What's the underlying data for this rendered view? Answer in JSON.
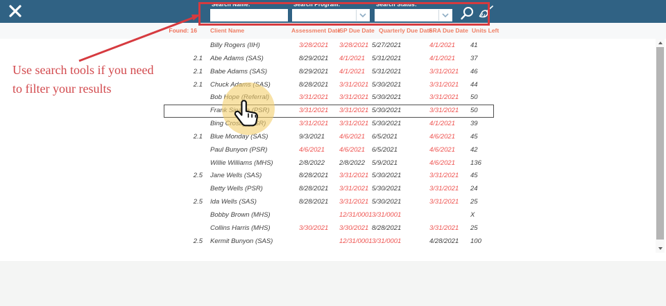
{
  "topbar": {
    "search_name_label": "Search Name:",
    "search_program_label": "Search Program:",
    "search_status_label": "Search Status:",
    "search_name_value": "",
    "search_program_value": "",
    "search_status_value": "",
    "colors": {
      "bar": "#306284",
      "annotation_red": "#d63a3f"
    }
  },
  "icons": {
    "close": "x-cross",
    "search": "magnifier",
    "clear_filters": "broom",
    "dropdown": "chevron-down",
    "scroll_up": "triangle-up",
    "scroll_down": "triangle-down"
  },
  "annotation": {
    "text": "Use search tools if you need to filter your results",
    "color": "#d2494d"
  },
  "table": {
    "found_label": "Found: 16",
    "header_color": "#ef7d63",
    "overdue_color": "#ee5350",
    "columns": [
      "Client Name",
      "Assessment Date",
      "ISP Due Date",
      "Quarterly Due Date",
      "SRA Due Date",
      "Units Left"
    ],
    "rows": [
      {
        "level": "",
        "name": "Billy Rogers (IIH)",
        "assessment": "3/28/2021",
        "assessment_overdue": true,
        "isp": "3/28/2021",
        "isp_overdue": true,
        "quarterly": "5/27/2021",
        "quarterly_overdue": false,
        "sra": "4/1/2021",
        "sra_overdue": true,
        "units": "41",
        "selected": false
      },
      {
        "level": "2.1",
        "name": "Abe Adams (SAS)",
        "assessment": "8/29/2021",
        "assessment_overdue": false,
        "isp": "4/1/2021",
        "isp_overdue": true,
        "quarterly": "5/31/2021",
        "quarterly_overdue": false,
        "sra": "4/1/2021",
        "sra_overdue": true,
        "units": "37",
        "selected": false
      },
      {
        "level": "2.1",
        "name": "Babe Adams (SAS)",
        "assessment": "8/29/2021",
        "assessment_overdue": false,
        "isp": "4/1/2021",
        "isp_overdue": true,
        "quarterly": "5/31/2021",
        "quarterly_overdue": false,
        "sra": "3/31/2021",
        "sra_overdue": true,
        "units": "46",
        "selected": false
      },
      {
        "level": "2.1",
        "name": "Chuck Adams (SAS)",
        "assessment": "8/28/2021",
        "assessment_overdue": false,
        "isp": "3/31/2021",
        "isp_overdue": true,
        "quarterly": "5/30/2021",
        "quarterly_overdue": false,
        "sra": "3/31/2021",
        "sra_overdue": true,
        "units": "44",
        "selected": false
      },
      {
        "level": "",
        "name": "Bob Hope (Referral)",
        "assessment": "3/31/2021",
        "assessment_overdue": true,
        "isp": "3/31/2021",
        "isp_overdue": true,
        "quarterly": "5/30/2021",
        "quarterly_overdue": false,
        "sra": "3/31/2021",
        "sra_overdue": true,
        "units": "50",
        "selected": false
      },
      {
        "level": "",
        "name": "Frank Sinatra (PSR)",
        "assessment": "3/31/2021",
        "assessment_overdue": true,
        "isp": "3/31/2021",
        "isp_overdue": true,
        "quarterly": "5/30/2021",
        "quarterly_overdue": false,
        "sra": "3/31/2021",
        "sra_overdue": true,
        "units": "50",
        "selected": true
      },
      {
        "level": "",
        "name": "Bing Crosby (PSR)",
        "assessment": "3/31/2021",
        "assessment_overdue": true,
        "isp": "3/31/2021",
        "isp_overdue": true,
        "quarterly": "5/30/2021",
        "quarterly_overdue": false,
        "sra": "4/1/2021",
        "sra_overdue": true,
        "units": "39",
        "selected": false
      },
      {
        "level": "2.1",
        "name": "Blue  Monday (SAS)",
        "assessment": "9/3/2021",
        "assessment_overdue": false,
        "isp": "4/6/2021",
        "isp_overdue": true,
        "quarterly": "6/5/2021",
        "quarterly_overdue": false,
        "sra": "4/6/2021",
        "sra_overdue": true,
        "units": "45",
        "selected": false
      },
      {
        "level": "",
        "name": "Paul Bunyon (PSR)",
        "assessment": "4/6/2021",
        "assessment_overdue": true,
        "isp": "4/6/2021",
        "isp_overdue": true,
        "quarterly": "6/5/2021",
        "quarterly_overdue": false,
        "sra": "4/6/2021",
        "sra_overdue": true,
        "units": "42",
        "selected": false
      },
      {
        "level": "",
        "name": "Willie Williams (MHS)",
        "assessment": "2/8/2022",
        "assessment_overdue": false,
        "isp": "2/8/2022",
        "isp_overdue": false,
        "quarterly": "5/9/2021",
        "quarterly_overdue": false,
        "sra": "4/6/2021",
        "sra_overdue": true,
        "units": "136",
        "selected": false
      },
      {
        "level": "2.5",
        "name": "Jane Wells (SAS)",
        "assessment": "8/28/2021",
        "assessment_overdue": false,
        "isp": "3/31/2021",
        "isp_overdue": true,
        "quarterly": "5/30/2021",
        "quarterly_overdue": false,
        "sra": "3/31/2021",
        "sra_overdue": true,
        "units": "45",
        "selected": false
      },
      {
        "level": "",
        "name": "Betty Wells (PSR)",
        "assessment": "8/28/2021",
        "assessment_overdue": false,
        "isp": "3/31/2021",
        "isp_overdue": true,
        "quarterly": "5/30/2021",
        "quarterly_overdue": false,
        "sra": "3/31/2021",
        "sra_overdue": true,
        "units": "24",
        "selected": false
      },
      {
        "level": "2.5",
        "name": "Ida Wells (SAS)",
        "assessment": "8/28/2021",
        "assessment_overdue": false,
        "isp": "3/31/2021",
        "isp_overdue": true,
        "quarterly": "5/30/2021",
        "quarterly_overdue": false,
        "sra": "3/31/2021",
        "sra_overdue": true,
        "units": "25",
        "selected": false
      },
      {
        "level": "",
        "name": "Bobby Brown (MHS)",
        "assessment": "",
        "assessment_overdue": false,
        "isp": "12/31/0001",
        "isp_overdue": true,
        "quarterly": "3/31/0001",
        "quarterly_overdue": true,
        "sra": "",
        "sra_overdue": false,
        "units": "X",
        "selected": false
      },
      {
        "level": "",
        "name": "Collins Harris (MHS)",
        "assessment": "3/30/2021",
        "assessment_overdue": true,
        "isp": "3/30/2021",
        "isp_overdue": true,
        "quarterly": "8/28/2021",
        "quarterly_overdue": false,
        "sra": "3/31/2021",
        "sra_overdue": true,
        "units": "25",
        "selected": false
      },
      {
        "level": "2.5",
        "name": "Kermit Bunyon (SAS)",
        "assessment": "",
        "assessment_overdue": false,
        "isp": "12/31/0001",
        "isp_overdue": true,
        "quarterly": "3/31/0001",
        "quarterly_overdue": true,
        "sra": "4/28/2021",
        "sra_overdue": false,
        "units": "100",
        "selected": false
      }
    ]
  }
}
